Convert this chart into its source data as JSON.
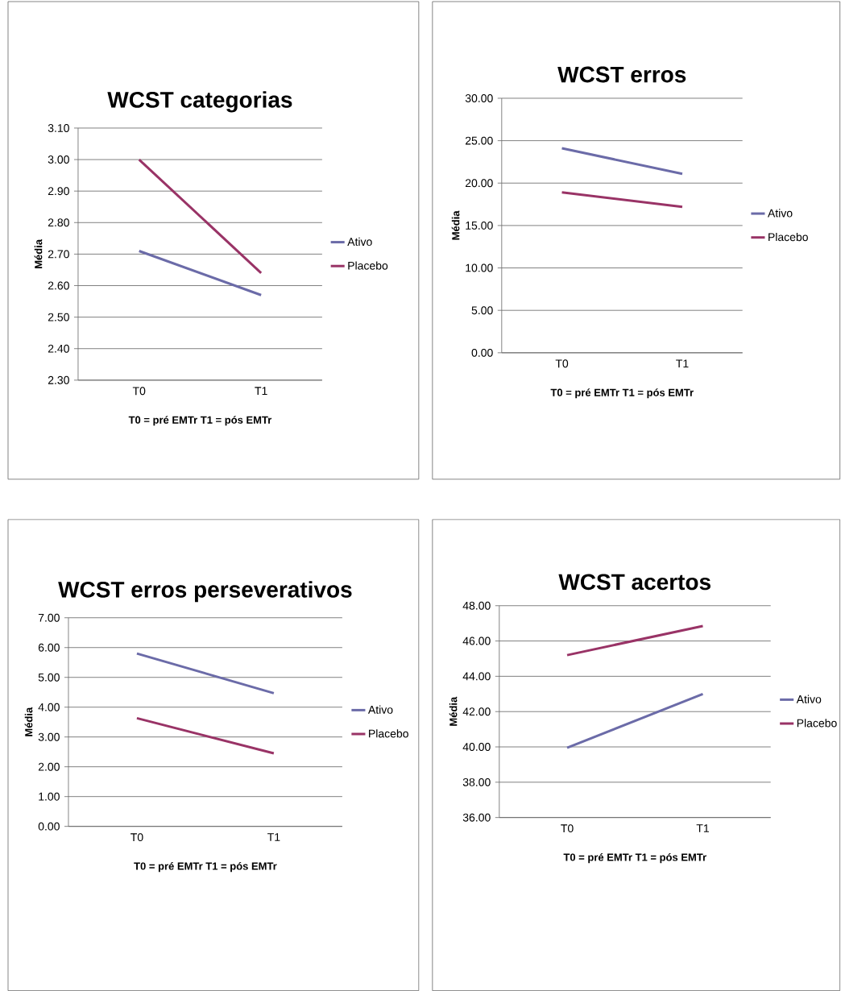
{
  "chart_data": [
    {
      "type": "line",
      "title": "WCST categorias",
      "xlabel": "T0 = pré EMTr   T1 = pós EMTr",
      "ylabel": "Média",
      "categories": [
        "T0",
        "T1"
      ],
      "series": [
        {
          "name": "Ativo",
          "color": "#6b6ba8",
          "values": [
            2.71,
            2.57
          ]
        },
        {
          "name": "Placebo",
          "color": "#993366",
          "values": [
            3.0,
            2.64
          ]
        }
      ],
      "ylim": [
        2.3,
        3.1
      ],
      "yticks": [
        {
          "value": 2.3,
          "label": "2.30"
        },
        {
          "value": 2.4,
          "label": "2.40"
        },
        {
          "value": 2.5,
          "label": "2.50"
        },
        {
          "value": 2.6,
          "label": "2.60"
        },
        {
          "value": 2.7,
          "label": "2.70"
        },
        {
          "value": 2.8,
          "label": "2.80"
        },
        {
          "value": 2.9,
          "label": "2.90"
        },
        {
          "value": 3.0,
          "label": "3.00"
        },
        {
          "value": 3.1,
          "label": "3.10"
        }
      ],
      "grid": "y",
      "legend": "right"
    },
    {
      "type": "line",
      "title": "WCST erros",
      "xlabel": "T0 = pré EMTr   T1 = pós EMTr",
      "ylabel": "Média",
      "categories": [
        "T0",
        "T1"
      ],
      "series": [
        {
          "name": "Ativo",
          "color": "#6b6ba8",
          "values": [
            24.1,
            21.1
          ]
        },
        {
          "name": "Placebo",
          "color": "#993366",
          "values": [
            18.9,
            17.2
          ]
        }
      ],
      "ylim": [
        0,
        30
      ],
      "yticks": [
        {
          "value": 0,
          "label": "0.00"
        },
        {
          "value": 5,
          "label": "5.00"
        },
        {
          "value": 10,
          "label": "10.00"
        },
        {
          "value": 15,
          "label": "15.00"
        },
        {
          "value": 20,
          "label": "20.00"
        },
        {
          "value": 25,
          "label": "25.00"
        },
        {
          "value": 30,
          "label": "30.00"
        }
      ],
      "grid": "y",
      "legend": "right"
    },
    {
      "type": "line",
      "title": "WCST erros perseverativos",
      "xlabel": "T0 = pré EMTr   T1 = pós EMTr",
      "ylabel": "Média",
      "categories": [
        "T0",
        "T1"
      ],
      "series": [
        {
          "name": "Ativo",
          "color": "#6b6ba8",
          "values": [
            5.8,
            4.47
          ]
        },
        {
          "name": "Placebo",
          "color": "#993366",
          "values": [
            3.63,
            2.45
          ]
        }
      ],
      "ylim": [
        0,
        7
      ],
      "yticks": [
        {
          "value": 0,
          "label": "0.00"
        },
        {
          "value": 1,
          "label": "1.00"
        },
        {
          "value": 2,
          "label": "2.00"
        },
        {
          "value": 3,
          "label": "3.00"
        },
        {
          "value": 4,
          "label": "4.00"
        },
        {
          "value": 5,
          "label": "5.00"
        },
        {
          "value": 6,
          "label": "6.00"
        },
        {
          "value": 7,
          "label": "7.00"
        }
      ],
      "grid": "y",
      "legend": "right"
    },
    {
      "type": "line",
      "title": "WCST acertos",
      "xlabel": "T0 = pré EMTr   T1 = pós EMTr",
      "ylabel": "Média",
      "categories": [
        "T0",
        "T1"
      ],
      "series": [
        {
          "name": "Ativo",
          "color": "#6b6ba8",
          "values": [
            39.95,
            43.0
          ]
        },
        {
          "name": "Placebo",
          "color": "#993366",
          "values": [
            45.2,
            46.85
          ]
        }
      ],
      "ylim": [
        36,
        48
      ],
      "yticks": [
        {
          "value": 36,
          "label": "36.00"
        },
        {
          "value": 38,
          "label": "38.00"
        },
        {
          "value": 40,
          "label": "40.00"
        },
        {
          "value": 42,
          "label": "42.00"
        },
        {
          "value": 44,
          "label": "44.00"
        },
        {
          "value": 46,
          "label": "46.00"
        },
        {
          "value": 48,
          "label": "48.00"
        }
      ],
      "grid": "y",
      "legend": "right"
    }
  ]
}
